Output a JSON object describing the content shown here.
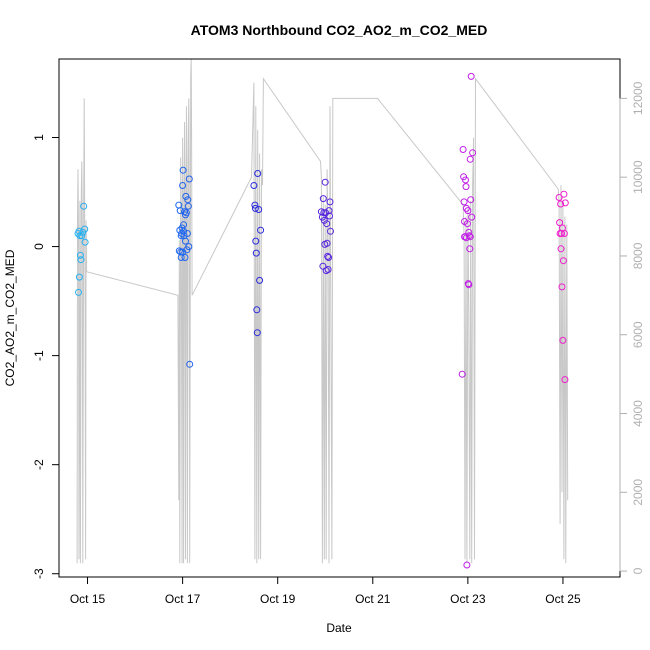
{
  "chart_data": {
    "type": "scatter",
    "title": "ATOM3 Northbound CO2_AO2_m_CO2_MED",
    "xlabel": "Date",
    "ylabel": "CO2_AO2_m_CO2_MED",
    "x_axis": {
      "unit": "days since Oct 15",
      "range": [
        -0.6,
        11.2
      ],
      "ticks": [
        {
          "x": 0,
          "label": "Oct 15"
        },
        {
          "x": 2,
          "label": "Oct 17"
        },
        {
          "x": 4,
          "label": "Oct 19"
        },
        {
          "x": 6,
          "label": "Oct 21"
        },
        {
          "x": 8,
          "label": "Oct 23"
        },
        {
          "x": 10,
          "label": "Oct 25"
        }
      ]
    },
    "y_axis_left": {
      "range": [
        -3.03,
        1.72
      ],
      "ticks": [
        {
          "y": 1,
          "label": "1"
        },
        {
          "y": 0,
          "label": "0"
        },
        {
          "y": -1,
          "label": "-1"
        },
        {
          "y": -2,
          "label": "-2"
        },
        {
          "y": -3,
          "label": "-3"
        }
      ]
    },
    "y_axis_right": {
      "color": "#b0b0b0",
      "range": [
        -150,
        13000
      ],
      "ticks": [
        {
          "y": 0,
          "label": "0"
        },
        {
          "y": 2000,
          "label": "2000"
        },
        {
          "y": 4000,
          "label": "4000"
        },
        {
          "y": 6000,
          "label": "6000"
        },
        {
          "y": 8000,
          "label": "8000"
        },
        {
          "y": 10000,
          "label": "10000"
        },
        {
          "y": 12000,
          "label": "12000"
        }
      ]
    },
    "grid": false,
    "legend": "none",
    "point_color_gradient": [
      "#27b3f0",
      "#1f6cf0",
      "#2d1fd8",
      "#7a2ae6",
      "#c21ee6",
      "#f01ecb"
    ],
    "line_series": {
      "color": "#c8c8c8",
      "axis": "right",
      "points": [
        [
          -0.22,
          200
        ],
        [
          -0.21,
          9000
        ],
        [
          -0.2,
          10200
        ],
        [
          -0.19,
          8600
        ],
        [
          -0.18,
          300
        ],
        [
          -0.16,
          9400
        ],
        [
          -0.15,
          200
        ],
        [
          -0.13,
          9600
        ],
        [
          -0.12,
          10400
        ],
        [
          -0.11,
          8800
        ],
        [
          -0.1,
          200
        ],
        [
          -0.08,
          9500
        ],
        [
          -0.07,
          12000
        ],
        [
          -0.06,
          9000
        ],
        [
          -0.05,
          6700
        ],
        [
          -0.04,
          300
        ],
        [
          -0.03,
          8900
        ],
        [
          -0.02,
          7600
        ],
        [
          1.9,
          7000
        ],
        [
          1.92,
          1800
        ],
        [
          1.93,
          8400
        ],
        [
          1.94,
          200
        ],
        [
          1.96,
          10500
        ],
        [
          1.97,
          9400
        ],
        [
          1.99,
          200
        ],
        [
          2.0,
          11000
        ],
        [
          2.01,
          9600
        ],
        [
          2.02,
          200
        ],
        [
          2.04,
          11400
        ],
        [
          2.05,
          9800
        ],
        [
          2.06,
          300
        ],
        [
          2.08,
          11800
        ],
        [
          2.09,
          10200
        ],
        [
          2.1,
          200
        ],
        [
          2.12,
          11200
        ],
        [
          2.13,
          12000
        ],
        [
          2.14,
          9500
        ],
        [
          2.15,
          200
        ],
        [
          2.17,
          12600
        ],
        [
          2.18,
          13000
        ],
        [
          2.19,
          11000
        ],
        [
          2.2,
          7000
        ],
        [
          3.45,
          10000
        ],
        [
          3.5,
          12400
        ],
        [
          3.52,
          300
        ],
        [
          3.54,
          11800
        ],
        [
          3.56,
          200
        ],
        [
          3.58,
          11200
        ],
        [
          3.6,
          300
        ],
        [
          3.62,
          10600
        ],
        [
          3.64,
          300
        ],
        [
          3.66,
          10200
        ],
        [
          3.68,
          9800
        ],
        [
          3.7,
          12500
        ],
        [
          4.9,
          10400
        ],
        [
          4.92,
          10000
        ],
        [
          4.94,
          200
        ],
        [
          4.96,
          9500
        ],
        [
          4.98,
          300
        ],
        [
          5.0,
          9300
        ],
        [
          5.02,
          300
        ],
        [
          5.04,
          10200
        ],
        [
          5.06,
          8400
        ],
        [
          5.08,
          200
        ],
        [
          5.1,
          11800
        ],
        [
          5.12,
          6500
        ],
        [
          5.14,
          300
        ],
        [
          5.16,
          12000
        ],
        [
          6.1,
          12000
        ],
        [
          7.9,
          9300
        ],
        [
          7.92,
          8500
        ],
        [
          7.94,
          300
        ],
        [
          7.96,
          9000
        ],
        [
          7.98,
          200
        ],
        [
          8.0,
          9200
        ],
        [
          8.02,
          6500
        ],
        [
          8.04,
          300
        ],
        [
          8.06,
          9400
        ],
        [
          8.08,
          200
        ],
        [
          8.1,
          9800
        ],
        [
          8.12,
          11000
        ],
        [
          8.14,
          300
        ],
        [
          8.16,
          12500
        ],
        [
          9.9,
          9700
        ],
        [
          9.92,
          9400
        ],
        [
          9.94,
          1200
        ],
        [
          9.96,
          9800
        ],
        [
          9.98,
          2000
        ],
        [
          10.0,
          9300
        ],
        [
          10.02,
          300
        ],
        [
          10.04,
          9000
        ],
        [
          10.06,
          200
        ],
        [
          10.08,
          8800
        ],
        [
          10.1,
          1800
        ]
      ]
    },
    "points": [
      {
        "x": -0.2,
        "y": 0.12
      },
      {
        "x": -0.18,
        "y": 0.14
      },
      {
        "x": -0.16,
        "y": 0.1
      },
      {
        "x": -0.15,
        "y": -0.08
      },
      {
        "x": -0.14,
        "y": -0.12
      },
      {
        "x": -0.17,
        "y": -0.28
      },
      {
        "x": -0.19,
        "y": -0.42
      },
      {
        "x": -0.1,
        "y": 0.13
      },
      {
        "x": -0.08,
        "y": 0.37
      },
      {
        "x": -0.06,
        "y": 0.16
      },
      {
        "x": -0.05,
        "y": 0.04
      },
      {
        "x": -0.12,
        "y": 0.1
      },
      {
        "x": 1.92,
        "y": 0.38
      },
      {
        "x": 1.94,
        "y": 0.15
      },
      {
        "x": 1.95,
        "y": 0.33
      },
      {
        "x": 1.96,
        "y": -0.05
      },
      {
        "x": 1.97,
        "y": -0.1
      },
      {
        "x": 1.98,
        "y": 0.12
      },
      {
        "x": 1.99,
        "y": 0.17
      },
      {
        "x": 2.0,
        "y": 0.56
      },
      {
        "x": 2.01,
        "y": 0.7
      },
      {
        "x": 2.02,
        "y": 0.2
      },
      {
        "x": 2.03,
        "y": 0.1
      },
      {
        "x": 2.04,
        "y": 0.32
      },
      {
        "x": 2.05,
        "y": -0.1
      },
      {
        "x": 2.06,
        "y": 0.29
      },
      {
        "x": 2.07,
        "y": 0.46
      },
      {
        "x": 2.08,
        "y": 0.31
      },
      {
        "x": 2.09,
        "y": -0.03
      },
      {
        "x": 2.1,
        "y": 0.12
      },
      {
        "x": 2.11,
        "y": 0.43
      },
      {
        "x": 2.12,
        "y": 0.37
      },
      {
        "x": 2.13,
        "y": 0.0
      },
      {
        "x": 2.14,
        "y": 0.62
      },
      {
        "x": 2.15,
        "y": -1.08
      },
      {
        "x": 1.93,
        "y": -0.04
      },
      {
        "x": 2.0,
        "y": -0.05
      },
      {
        "x": 2.06,
        "y": 0.05
      },
      {
        "x": 2.02,
        "y": 0.14
      },
      {
        "x": 1.97,
        "y": 0.1
      },
      {
        "x": 3.5,
        "y": 0.56
      },
      {
        "x": 3.52,
        "y": 0.38
      },
      {
        "x": 3.53,
        "y": 0.35
      },
      {
        "x": 3.54,
        "y": 0.05
      },
      {
        "x": 3.55,
        "y": -0.06
      },
      {
        "x": 3.56,
        "y": -0.58
      },
      {
        "x": 3.57,
        "y": -0.79
      },
      {
        "x": 3.58,
        "y": 0.67
      },
      {
        "x": 3.6,
        "y": 0.34
      },
      {
        "x": 3.62,
        "y": -0.31
      },
      {
        "x": 3.64,
        "y": 0.15
      },
      {
        "x": 4.92,
        "y": 0.32
      },
      {
        "x": 4.94,
        "y": 0.27
      },
      {
        "x": 4.95,
        "y": -0.18
      },
      {
        "x": 4.96,
        "y": 0.44
      },
      {
        "x": 4.97,
        "y": 0.31
      },
      {
        "x": 4.98,
        "y": 0.24
      },
      {
        "x": 4.99,
        "y": 0.02
      },
      {
        "x": 5.0,
        "y": 0.59
      },
      {
        "x": 5.01,
        "y": 0.31
      },
      {
        "x": 5.02,
        "y": -0.22
      },
      {
        "x": 5.03,
        "y": 0.21
      },
      {
        "x": 5.04,
        "y": 0.03
      },
      {
        "x": 5.05,
        "y": -0.09
      },
      {
        "x": 5.06,
        "y": -0.21
      },
      {
        "x": 5.07,
        "y": -0.1
      },
      {
        "x": 5.08,
        "y": 0.33
      },
      {
        "x": 5.09,
        "y": 0.28
      },
      {
        "x": 5.1,
        "y": 0.41
      },
      {
        "x": 5.11,
        "y": 0.14
      },
      {
        "x": 7.88,
        "y": -1.17
      },
      {
        "x": 7.9,
        "y": 0.89
      },
      {
        "x": 7.91,
        "y": 0.64
      },
      {
        "x": 7.92,
        "y": 0.41
      },
      {
        "x": 7.93,
        "y": 0.23
      },
      {
        "x": 7.94,
        "y": 0.09
      },
      {
        "x": 7.95,
        "y": 0.61
      },
      {
        "x": 7.96,
        "y": 0.55
      },
      {
        "x": 7.97,
        "y": 0.08
      },
      {
        "x": 7.98,
        "y": -2.92
      },
      {
        "x": 7.99,
        "y": 0.21
      },
      {
        "x": 8.0,
        "y": 0.33
      },
      {
        "x": 8.01,
        "y": -0.34
      },
      {
        "x": 8.02,
        "y": 0.13
      },
      {
        "x": 8.03,
        "y": 0.1
      },
      {
        "x": 8.04,
        "y": -0.02
      },
      {
        "x": 8.05,
        "y": 0.8
      },
      {
        "x": 8.06,
        "y": 0.43
      },
      {
        "x": 8.07,
        "y": 1.56
      },
      {
        "x": 8.08,
        "y": 0.27
      },
      {
        "x": 8.1,
        "y": 0.86
      },
      {
        "x": 8.02,
        "y": -0.35
      },
      {
        "x": 7.97,
        "y": 0.35
      },
      {
        "x": 7.93,
        "y": 0.09
      },
      {
        "x": 8.05,
        "y": 0.09
      },
      {
        "x": 9.92,
        "y": 0.45
      },
      {
        "x": 9.93,
        "y": 0.22
      },
      {
        "x": 9.94,
        "y": 0.12
      },
      {
        "x": 9.95,
        "y": 0.39
      },
      {
        "x": 9.96,
        "y": -0.02
      },
      {
        "x": 9.97,
        "y": 0.12
      },
      {
        "x": 9.98,
        "y": -0.37
      },
      {
        "x": 9.99,
        "y": 0.17
      },
      {
        "x": 10.0,
        "y": -0.86
      },
      {
        "x": 10.01,
        "y": -0.13
      },
      {
        "x": 10.02,
        "y": 0.48
      },
      {
        "x": 10.03,
        "y": 0.12
      },
      {
        "x": 10.04,
        "y": -1.22
      },
      {
        "x": 10.05,
        "y": 0.4
      }
    ]
  }
}
